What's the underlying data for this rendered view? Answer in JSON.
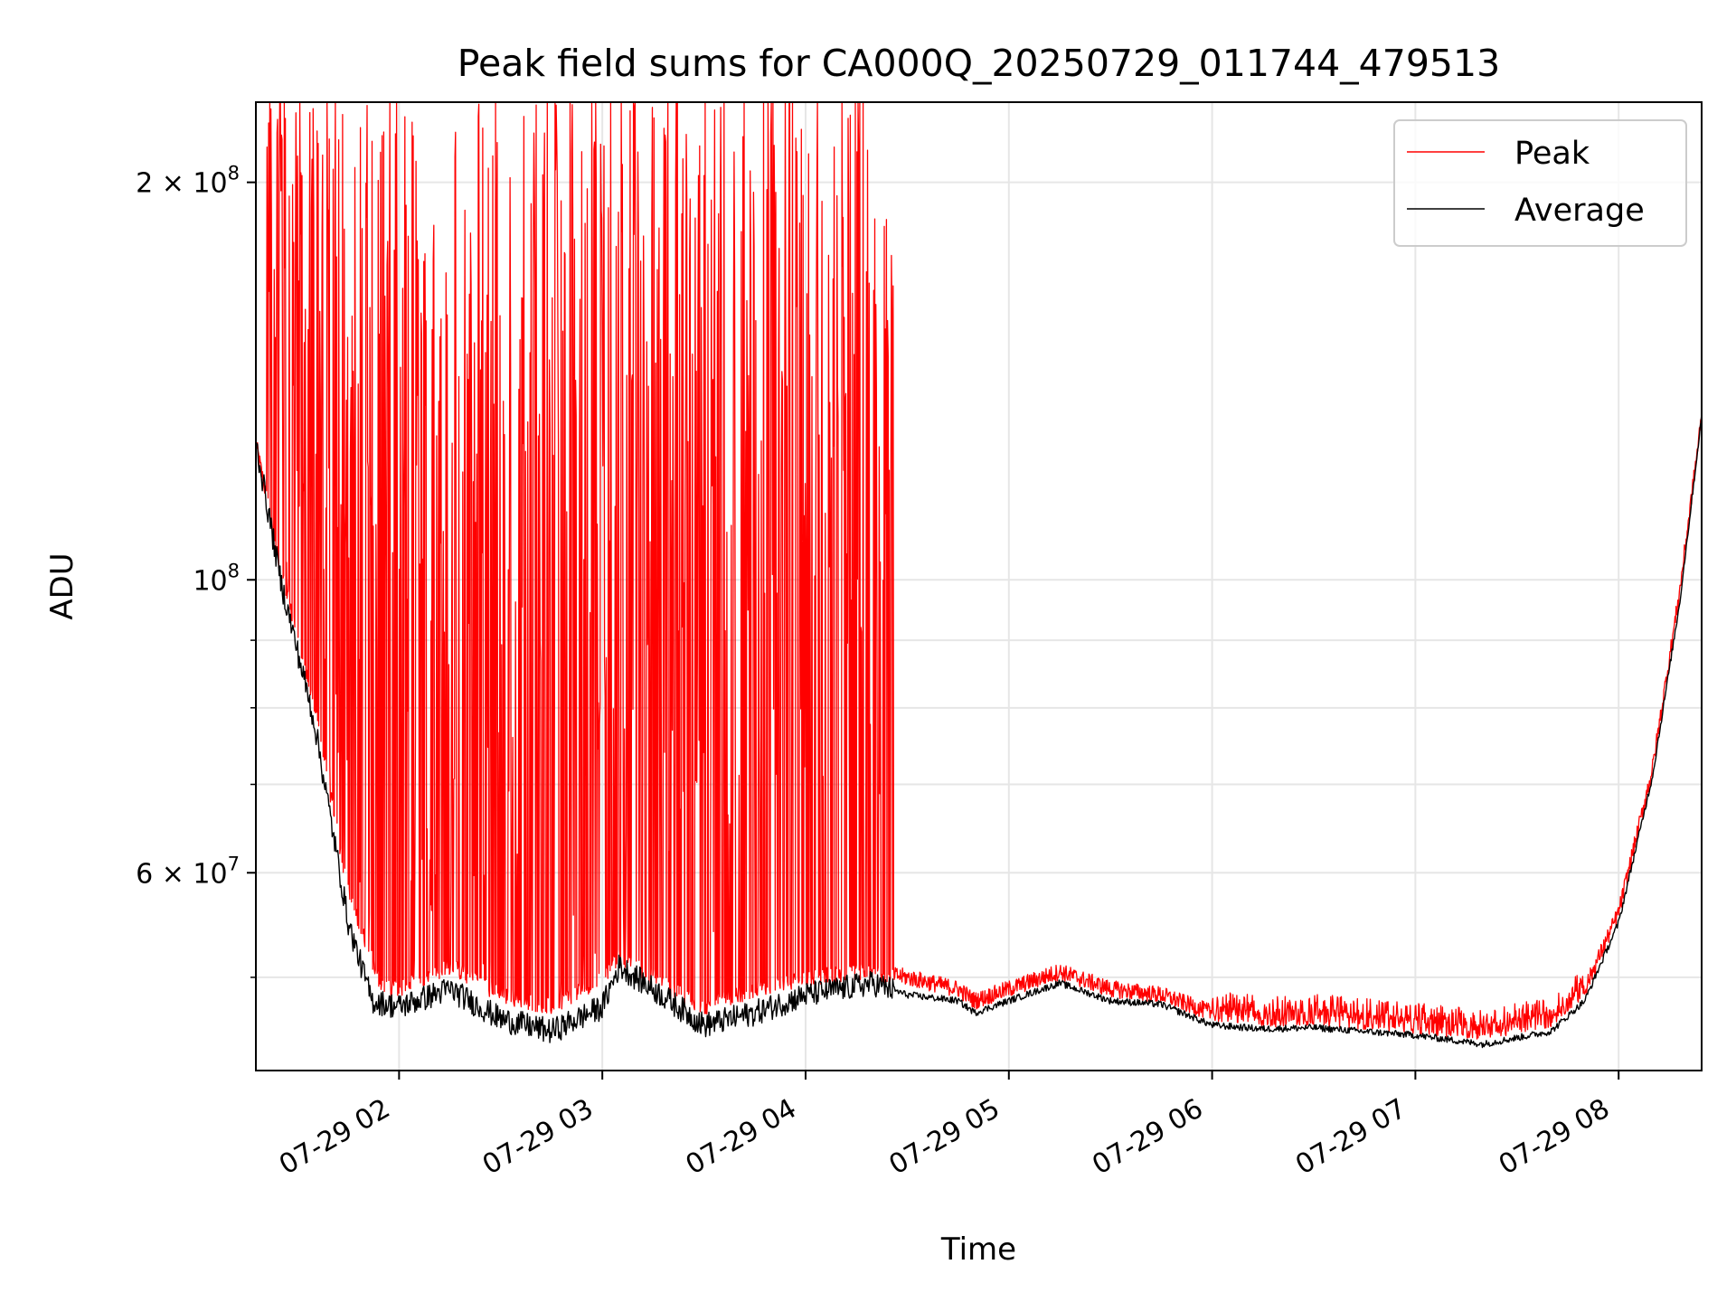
{
  "chart_data": {
    "type": "line",
    "title": "Peak field sums for CA000Q_20250729_011744_479513",
    "xlabel": "Time",
    "ylabel": "ADU",
    "x_scale": "time",
    "y_scale": "log",
    "xlim": [
      "2025-07-29 01:17:44",
      "2025-07-29 08:24:30"
    ],
    "ylim": [
      42500000,
      230000000
    ],
    "grid": true,
    "legend_position": "top-right",
    "x_ticks": [
      {
        "value": "2025-07-29 02:00",
        "label": "07-29 02"
      },
      {
        "value": "2025-07-29 03:00",
        "label": "07-29 03"
      },
      {
        "value": "2025-07-29 04:00",
        "label": "07-29 04"
      },
      {
        "value": "2025-07-29 05:00",
        "label": "07-29 05"
      },
      {
        "value": "2025-07-29 06:00",
        "label": "07-29 06"
      },
      {
        "value": "2025-07-29 07:00",
        "label": "07-29 07"
      },
      {
        "value": "2025-07-29 08:00",
        "label": "07-29 08"
      }
    ],
    "y_major_ticks": [
      {
        "value": 60000000,
        "base": "6 × 10",
        "exp": "7"
      },
      {
        "value": 100000000,
        "base": "10",
        "exp": "8"
      },
      {
        "value": 200000000,
        "base": "2 × 10",
        "exp": "8"
      }
    ],
    "y_minor_ticks": [
      50000000,
      70000000,
      80000000,
      90000000
    ],
    "series": [
      {
        "name": "Peak",
        "color": "#ff0000",
        "spike_region": [
          "2025-07-29 01:17:44",
          "2025-07-29 04:26:00"
        ],
        "spike_max": 230000000,
        "points": [
          [
            "2025-07-29 01:17:44",
            127000000
          ],
          [
            "2025-07-29 01:25:00",
            102000000
          ],
          [
            "2025-07-29 01:35:00",
            80000000
          ],
          [
            "2025-07-29 01:45:00",
            58000000
          ],
          [
            "2025-07-29 01:55:00",
            49000000
          ],
          [
            "2025-07-29 02:00:00",
            49000000
          ],
          [
            "2025-07-29 02:15:00",
            51000000
          ],
          [
            "2025-07-29 02:30:00",
            48500000
          ],
          [
            "2025-07-29 02:45:00",
            47500000
          ],
          [
            "2025-07-29 03:00:00",
            50000000
          ],
          [
            "2025-07-29 03:05:00",
            52000000
          ],
          [
            "2025-07-29 03:15:00",
            50000000
          ],
          [
            "2025-07-29 03:30:00",
            47500000
          ],
          [
            "2025-07-29 03:45:00",
            49000000
          ],
          [
            "2025-07-29 04:00:00",
            50000000
          ],
          [
            "2025-07-29 04:20:00",
            50500000
          ],
          [
            "2025-07-29 04:30:00",
            50000000
          ],
          [
            "2025-07-29 04:45:00",
            49000000
          ],
          [
            "2025-07-29 04:50:00",
            48000000
          ],
          [
            "2025-07-29 05:00:00",
            49000000
          ],
          [
            "2025-07-29 05:15:00",
            50500000
          ],
          [
            "2025-07-29 05:30:00",
            49000000
          ],
          [
            "2025-07-29 05:45:00",
            48500000
          ],
          [
            "2025-07-29 06:00:00",
            47000000
          ],
          [
            "2025-07-29 06:15:00",
            46500000
          ],
          [
            "2025-07-29 06:30:00",
            46700000
          ],
          [
            "2025-07-29 07:00:00",
            46000000
          ],
          [
            "2025-07-29 07:20:00",
            45500000
          ],
          [
            "2025-07-29 07:40:00",
            46500000
          ],
          [
            "2025-07-29 07:50:00",
            49000000
          ],
          [
            "2025-07-29 08:00:00",
            56000000
          ],
          [
            "2025-07-29 08:10:00",
            72000000
          ],
          [
            "2025-07-29 08:18:00",
            98000000
          ],
          [
            "2025-07-29 08:24:30",
            133000000
          ]
        ]
      },
      {
        "name": "Average",
        "color": "#000000",
        "points": [
          [
            "2025-07-29 01:17:44",
            127000000
          ],
          [
            "2025-07-29 01:25:00",
            100000000
          ],
          [
            "2025-07-29 01:35:00",
            78000000
          ],
          [
            "2025-07-29 01:45:00",
            55000000
          ],
          [
            "2025-07-29 01:52:00",
            48000000
          ],
          [
            "2025-07-29 02:00:00",
            47500000
          ],
          [
            "2025-07-29 02:15:00",
            49000000
          ],
          [
            "2025-07-29 02:30:00",
            46500000
          ],
          [
            "2025-07-29 02:45:00",
            45500000
          ],
          [
            "2025-07-29 03:00:00",
            47500000
          ],
          [
            "2025-07-29 03:05:00",
            51000000
          ],
          [
            "2025-07-29 03:15:00",
            49000000
          ],
          [
            "2025-07-29 03:30:00",
            46000000
          ],
          [
            "2025-07-29 03:45:00",
            47000000
          ],
          [
            "2025-07-29 04:00:00",
            48500000
          ],
          [
            "2025-07-29 04:20:00",
            49500000
          ],
          [
            "2025-07-29 04:30:00",
            48500000
          ],
          [
            "2025-07-29 04:45:00",
            48000000
          ],
          [
            "2025-07-29 04:50:00",
            47000000
          ],
          [
            "2025-07-29 05:00:00",
            48000000
          ],
          [
            "2025-07-29 05:15:00",
            49500000
          ],
          [
            "2025-07-29 05:30:00",
            48000000
          ],
          [
            "2025-07-29 05:45:00",
            47700000
          ],
          [
            "2025-07-29 06:00:00",
            46000000
          ],
          [
            "2025-07-29 06:15:00",
            45700000
          ],
          [
            "2025-07-29 06:30:00",
            45800000
          ],
          [
            "2025-07-29 07:00:00",
            45200000
          ],
          [
            "2025-07-29 07:20:00",
            44500000
          ],
          [
            "2025-07-29 07:40:00",
            45500000
          ],
          [
            "2025-07-29 07:50:00",
            48000000
          ],
          [
            "2025-07-29 08:00:00",
            55000000
          ],
          [
            "2025-07-29 08:10:00",
            71000000
          ],
          [
            "2025-07-29 08:18:00",
            96000000
          ],
          [
            "2025-07-29 08:24:30",
            133000000
          ]
        ]
      }
    ]
  }
}
